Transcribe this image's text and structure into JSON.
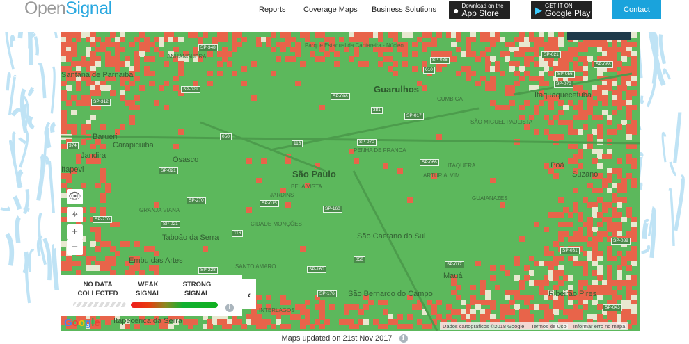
{
  "header": {
    "logo_open": "Open",
    "logo_signal": "Signal",
    "nav": [
      "Reports",
      "Coverage Maps",
      "Business Solutions"
    ],
    "app_store": {
      "small": "Download on the",
      "big": "App Store"
    },
    "google_play": {
      "small": "GET IT ON",
      "big": "Google Play"
    },
    "contact": "Contact"
  },
  "map": {
    "cities": [
      "São Paulo",
      "Guarulhos",
      "Osasco",
      "Barueri",
      "Carapicuiba",
      "Jandira",
      "Itapevi",
      "Taboão da Serra",
      "Embu das Artes",
      "São Caetano do Sul",
      "São Bernardo do Campo",
      "Mauá",
      "Suzano",
      "Poá",
      "Itaquaquecetuba",
      "Santana de Parnaiba",
      "Ribeirão Pires",
      "Itapecerica da Serra"
    ],
    "districts": [
      "BELA VISTA",
      "JARDINS",
      "CIDADE MONÇÕES",
      "SANTO AMARO",
      "PENHA DE FRANCA",
      "SÃO MIGUEL PAULISTA",
      "ITAQUERA",
      "ARTUR ALVIM",
      "GUAIANAZES",
      "CUMBICA",
      "GRANJA VIANA",
      "ANHANGUERA",
      "INTERLAGOS",
      "Parque Estadual da Cantareira - Núcleo"
    ],
    "roads": [
      "SP-348",
      "SP-021",
      "SP-312",
      "SP-008",
      "SP-036",
      "SP-056",
      "SP-070",
      "SP-088",
      "381",
      "610",
      "374",
      "050",
      "116",
      "SP-070",
      "SP-017",
      "SP-066",
      "SP-021",
      "SP-270",
      "SP-015",
      "SP-160",
      "SP-270",
      "SP-021",
      "116",
      "SP-228",
      "SP-160",
      "050",
      "SP-176",
      "SP-017",
      "SP-031",
      "SP-039",
      "SP-043",
      "SP-021"
    ],
    "zoom_in": "+",
    "zoom_out": "−",
    "attribution": [
      "Dados cartográficos ©2018 Google",
      "Termos de Uso",
      "Informar erro no mapa"
    ],
    "google": "Google",
    "colors": {
      "strong": "#5cb85c",
      "weak": "#e8644a",
      "no_data": "#e8e8d0"
    }
  },
  "legend": {
    "no_data": "NO DATA\nCOLLECTED",
    "weak": "WEAK\nSIGNAL",
    "strong": "STRONG\nSIGNAL"
  },
  "footer": {
    "updated": "Maps updated on 21st Nov 2017"
  }
}
